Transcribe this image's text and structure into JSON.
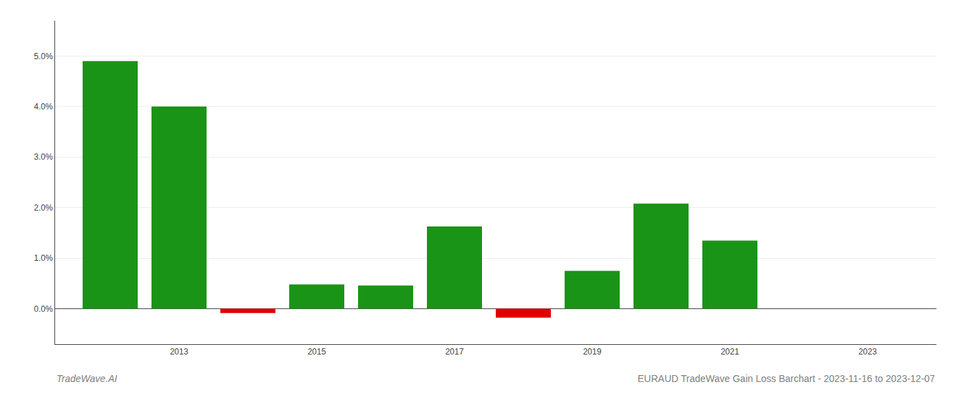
{
  "chart_data": {
    "type": "bar",
    "title": "EURAUD TradeWave Gain Loss Barchart - 2023-11-16 to 2023-12-07",
    "annotations": [
      {
        "text": "TradeWave.AI"
      }
    ],
    "x": [
      2012,
      2013,
      2014,
      2015,
      2016,
      2017,
      2018,
      2019,
      2020,
      2021
    ],
    "values": [
      0.049,
      0.04,
      -0.00085,
      0.0048,
      0.0046,
      0.0163,
      -0.00175,
      0.0075,
      0.0208,
      0.0135
    ],
    "colors": [
      "#1a9416",
      "#1a9416",
      "#e00000",
      "#1a9416",
      "#1a9416",
      "#1a9416",
      "#e00000",
      "#1a9416",
      "#1a9416",
      "#1a9416"
    ],
    "xlim": [
      2011.2,
      2024.0
    ],
    "xticks": [
      2013,
      2015,
      2017,
      2019,
      2021,
      2023
    ],
    "ylim": [
      -0.007,
      0.057
    ],
    "yticks": [
      {
        "value": 0.0,
        "label": "0.0%"
      },
      {
        "value": 0.01,
        "label": "1.0%"
      },
      {
        "value": 0.02,
        "label": "2.0%"
      },
      {
        "value": 0.03,
        "label": "3.0%"
      },
      {
        "value": 0.04,
        "label": "4.0%"
      },
      {
        "value": 0.05,
        "label": "5.0%"
      }
    ],
    "grid": true
  }
}
